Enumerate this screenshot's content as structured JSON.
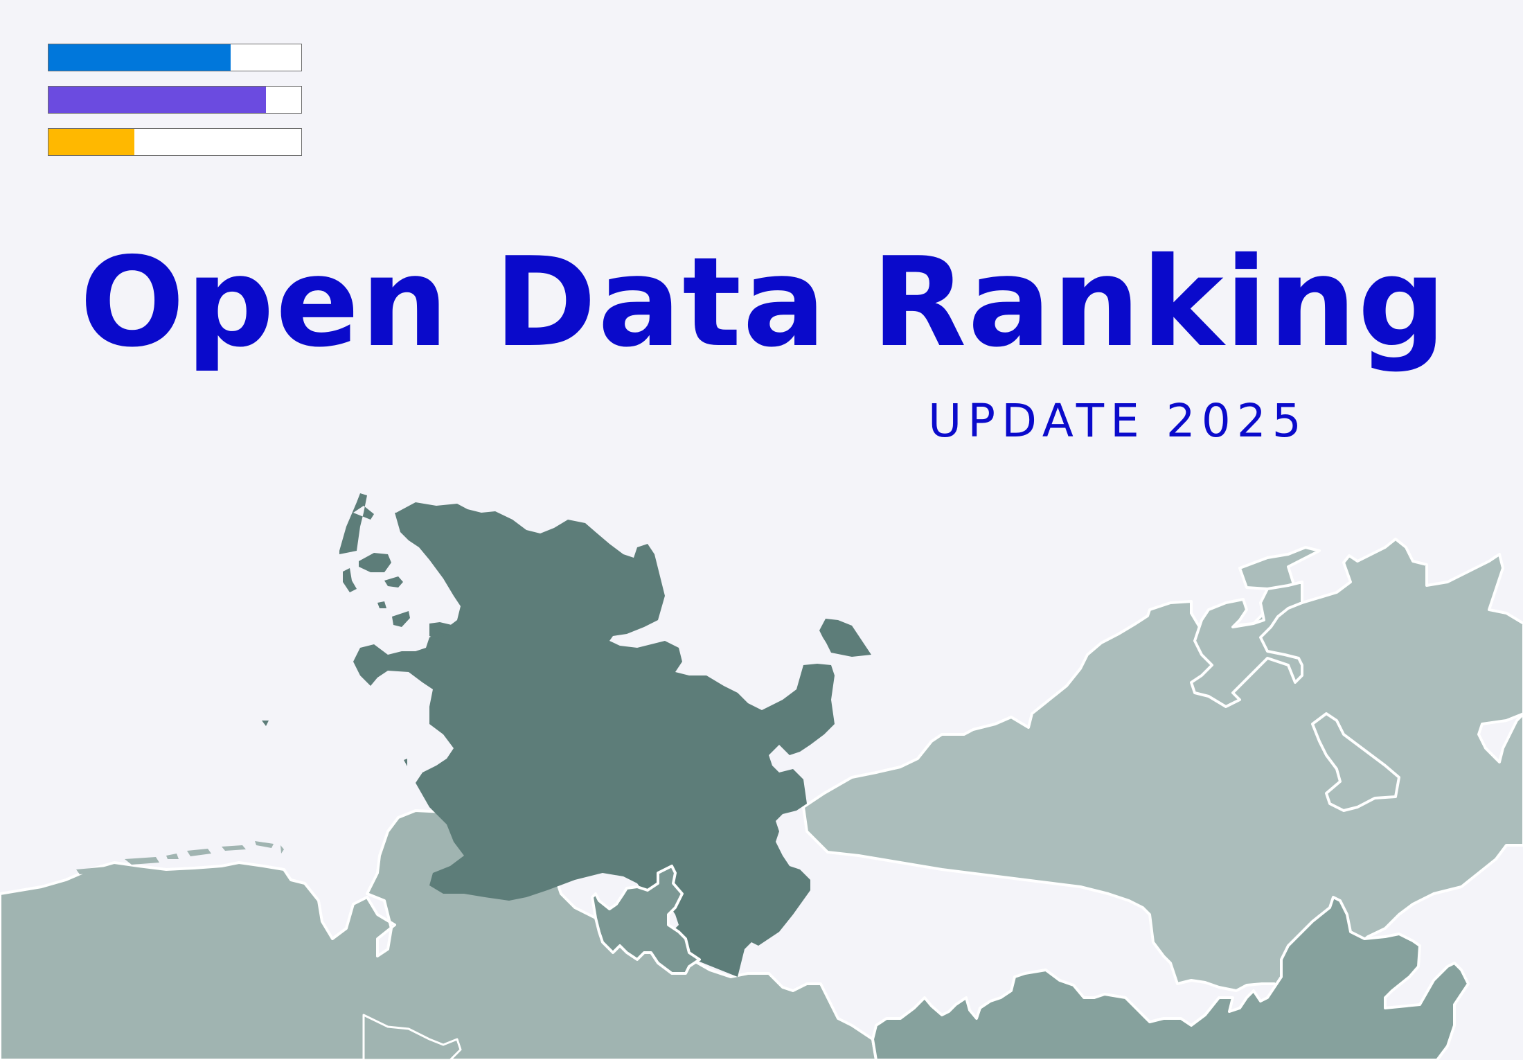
{
  "header": {
    "title": "Open Data Ranking",
    "subtitle": "UPDATE 2025"
  },
  "progress_bars": [
    {
      "id": "blue",
      "fill": 0.72,
      "color": "#0077db"
    },
    {
      "id": "purple",
      "fill": 0.86,
      "color": "#6b4be0"
    },
    {
      "id": "yellow",
      "fill": 0.34,
      "color": "#ffb800"
    }
  ],
  "map": {
    "colors": {
      "highlight_region": "#5d7d79",
      "region_light": "#abbdbb",
      "region_mid": "#a0b4b1",
      "region_dark": "#86a19d",
      "region_small": "#7b9793",
      "border": "#ffffff"
    }
  }
}
